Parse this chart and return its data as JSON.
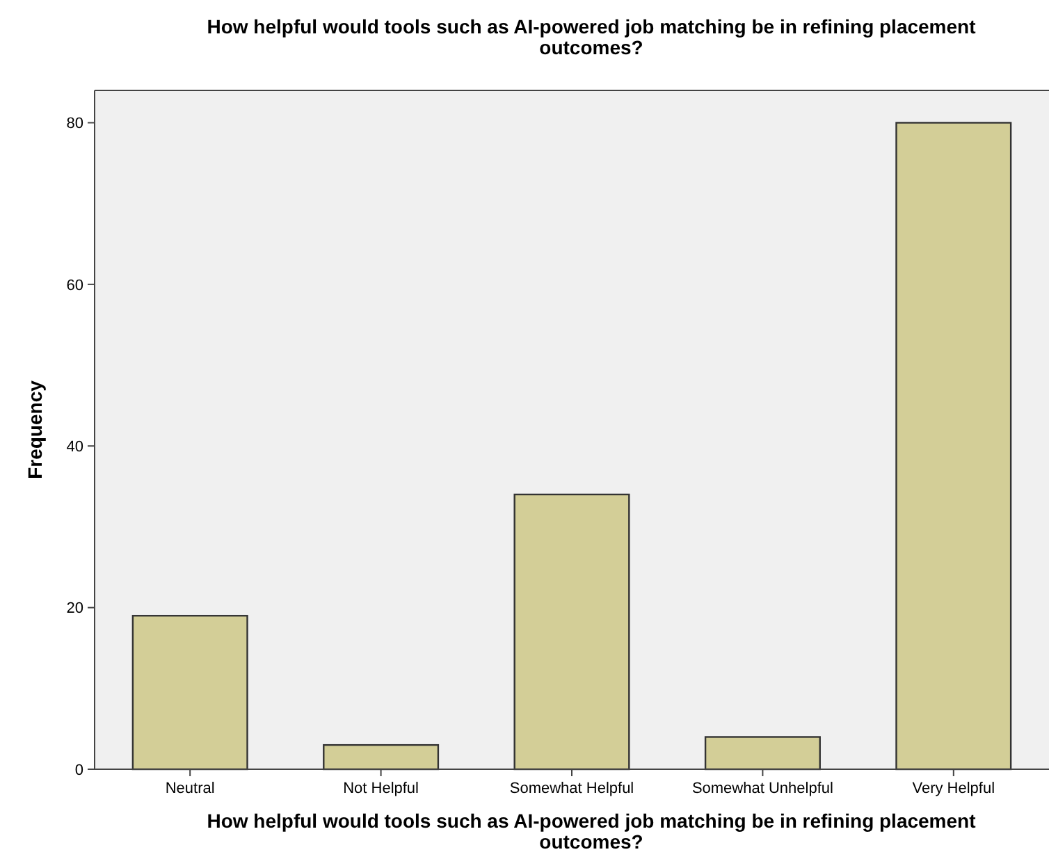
{
  "chart_data": {
    "type": "bar",
    "title": "How helpful would tools such as AI-powered job matching be in refining placement outcomes?",
    "xlabel": "How helpful would tools such as AI-powered job matching be in refining placement outcomes?",
    "ylabel": "Frequency",
    "categories": [
      "Neutral",
      "Not Helpful",
      "Somewhat Helpful",
      "Somewhat Unhelpful",
      "Very Helpful"
    ],
    "values": [
      19,
      3,
      34,
      4,
      80
    ],
    "color": "#d3ce97",
    "ylim": [
      0,
      84
    ],
    "yticks": [
      0,
      20,
      40,
      60,
      80
    ],
    "grid": false
  }
}
